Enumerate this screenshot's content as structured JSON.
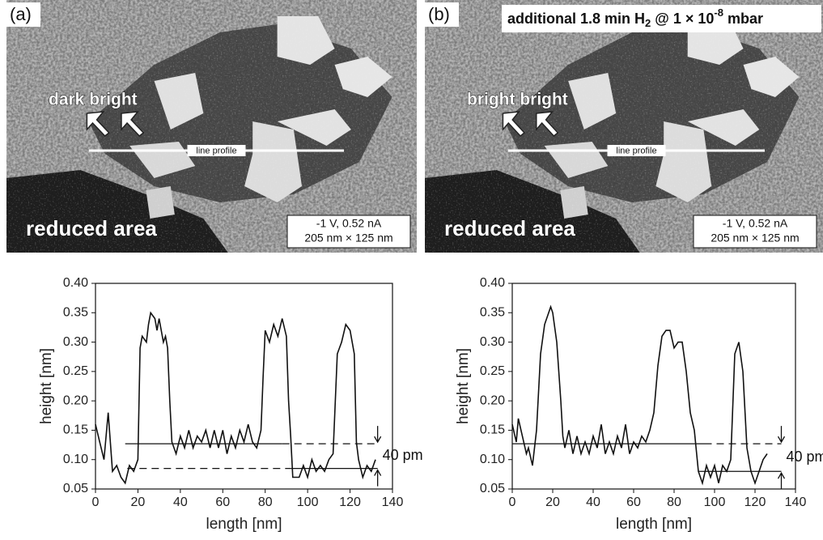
{
  "panels": [
    {
      "label": "(a)",
      "arrow_label": "dark bright",
      "profile_label": "line profile",
      "area_label": "reduced area",
      "params": [
        "-1 V, 0.52 nA",
        "205 nm × 125 nm"
      ]
    },
    {
      "label": "(b)",
      "arrow_label": "bright bright",
      "profile_label": "line profile",
      "area_label": "reduced area",
      "params": [
        "-1 V, 0.52 nA",
        "205 nm × 125 nm"
      ],
      "title_parts": [
        "additional 1.8 min H",
        "2",
        " @ 1 × 10",
        "-8",
        " mbar"
      ]
    }
  ],
  "chart_data": [
    {
      "type": "line",
      "xlabel": "length [nm]",
      "ylabel": "height [nm]",
      "color": "#111",
      "xlim": [
        0,
        140
      ],
      "xticks": [
        0,
        20,
        40,
        60,
        80,
        100,
        120,
        140
      ],
      "ylim": [
        0.05,
        0.4
      ],
      "yticks": [
        0.05,
        {
          "value": 0.1,
          "label": "0.10"
        },
        0.15,
        {
          "value": 0.2,
          "label": "0.20"
        },
        0.25,
        {
          "value": 0.3,
          "label": "0.30"
        },
        0.35,
        {
          "value": 0.4,
          "label": "0.40"
        }
      ],
      "x": [
        0,
        2,
        4,
        6,
        8,
        10,
        12,
        14,
        16,
        18,
        20,
        21,
        22,
        24,
        25,
        26,
        28,
        29,
        30,
        32,
        33,
        34,
        35,
        36,
        38,
        40,
        42,
        44,
        46,
        48,
        50,
        52,
        54,
        56,
        58,
        60,
        62,
        64,
        66,
        68,
        70,
        72,
        74,
        76,
        78,
        79,
        80,
        82,
        84,
        86,
        88,
        90,
        91,
        92,
        93,
        96,
        98,
        100,
        102,
        104,
        106,
        108,
        110,
        112,
        114,
        116,
        118,
        120,
        122,
        123,
        124,
        126,
        128,
        130,
        132
      ],
      "values": [
        0.16,
        0.13,
        0.1,
        0.18,
        0.08,
        0.09,
        0.07,
        0.06,
        0.09,
        0.08,
        0.1,
        0.29,
        0.31,
        0.3,
        0.33,
        0.35,
        0.34,
        0.32,
        0.34,
        0.3,
        0.31,
        0.29,
        0.2,
        0.13,
        0.11,
        0.14,
        0.12,
        0.15,
        0.12,
        0.14,
        0.13,
        0.15,
        0.12,
        0.15,
        0.12,
        0.15,
        0.11,
        0.14,
        0.12,
        0.15,
        0.13,
        0.16,
        0.13,
        0.12,
        0.15,
        0.24,
        0.32,
        0.3,
        0.33,
        0.31,
        0.34,
        0.31,
        0.2,
        0.14,
        0.07,
        0.07,
        0.09,
        0.07,
        0.1,
        0.08,
        0.09,
        0.08,
        0.1,
        0.11,
        0.28,
        0.3,
        0.33,
        0.32,
        0.28,
        0.13,
        0.1,
        0.07,
        0.09,
        0.08,
        0.1
      ],
      "reference_lines": [
        {
          "y": 0.127,
          "segments": [
            {
              "x": [
                14,
                88
              ],
              "style": "solid"
            },
            {
              "x": [
                88,
                133
              ],
              "style": "dashed"
            }
          ]
        },
        {
          "y": 0.085,
          "segments": [
            {
              "x": [
                15,
                92
              ],
              "style": "dashed"
            },
            {
              "x": [
                92,
                133
              ],
              "style": "solid"
            }
          ]
        }
      ],
      "annotation": "40 pm"
    },
    {
      "type": "line",
      "xlabel": "length [nm]",
      "ylabel": "height [nm]",
      "color": "#111",
      "xlim": [
        0,
        140
      ],
      "xticks": [
        0,
        20,
        40,
        60,
        80,
        100,
        120,
        140
      ],
      "ylim": [
        0.05,
        0.4
      ],
      "yticks": [
        0.05,
        {
          "value": 0.1,
          "label": "0.10"
        },
        0.15,
        {
          "value": 0.2,
          "label": "0.20"
        },
        0.25,
        {
          "value": 0.3,
          "label": "0.30"
        },
        0.35,
        {
          "value": 0.4,
          "label": "0.40"
        }
      ],
      "x": [
        0,
        2,
        3,
        5,
        7,
        8,
        10,
        12,
        14,
        16,
        18,
        19,
        20,
        22,
        24,
        25,
        26,
        28,
        30,
        32,
        34,
        36,
        38,
        40,
        42,
        44,
        46,
        48,
        50,
        52,
        54,
        56,
        58,
        60,
        62,
        64,
        66,
        68,
        70,
        72,
        74,
        76,
        78,
        80,
        82,
        84,
        86,
        88,
        90,
        92,
        94,
        96,
        98,
        100,
        102,
        104,
        106,
        108,
        110,
        112,
        114,
        116,
        118,
        120,
        122,
        124,
        126
      ],
      "values": [
        0.16,
        0.13,
        0.17,
        0.14,
        0.11,
        0.12,
        0.09,
        0.15,
        0.28,
        0.33,
        0.35,
        0.36,
        0.35,
        0.3,
        0.2,
        0.14,
        0.12,
        0.15,
        0.11,
        0.14,
        0.11,
        0.13,
        0.11,
        0.14,
        0.12,
        0.16,
        0.11,
        0.13,
        0.11,
        0.14,
        0.12,
        0.16,
        0.11,
        0.13,
        0.12,
        0.14,
        0.13,
        0.15,
        0.18,
        0.26,
        0.31,
        0.32,
        0.32,
        0.29,
        0.3,
        0.3,
        0.25,
        0.18,
        0.15,
        0.08,
        0.06,
        0.09,
        0.07,
        0.09,
        0.06,
        0.09,
        0.08,
        0.1,
        0.28,
        0.3,
        0.25,
        0.12,
        0.08,
        0.06,
        0.08,
        0.1,
        0.11
      ],
      "reference_lines": [
        {
          "y": 0.127,
          "segments": [
            {
              "x": [
                0,
                95
              ],
              "style": "solid"
            },
            {
              "x": [
                95,
                133
              ],
              "style": "dashed"
            }
          ]
        },
        {
          "y": 0.08,
          "segments": [
            {
              "x": [
                92,
                133
              ],
              "style": "solid"
            }
          ]
        }
      ],
      "annotation": "40 pm"
    }
  ]
}
